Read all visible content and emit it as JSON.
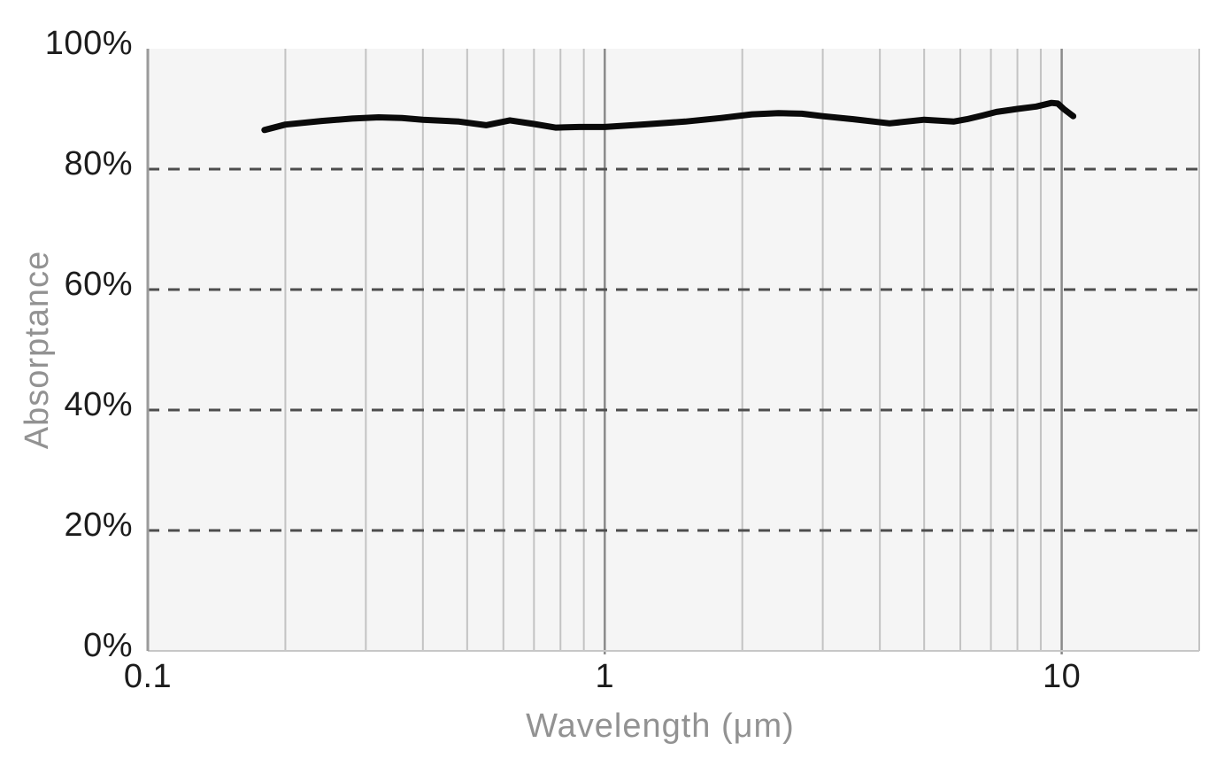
{
  "chart_data": {
    "type": "line",
    "title": "",
    "xlabel": "Wavelength (μm)",
    "ylabel": "Absorptance",
    "x_scale": "log",
    "xlim": [
      0.1,
      20
    ],
    "ylim": [
      0,
      100
    ],
    "grid": "on",
    "legend": "none",
    "x_ticks": [
      {
        "value": 0.1,
        "label": "0.1"
      },
      {
        "value": 1,
        "label": "1"
      },
      {
        "value": 10,
        "label": "10"
      }
    ],
    "y_ticks": [
      {
        "value": 0,
        "label": "0%"
      },
      {
        "value": 20,
        "label": "20%"
      },
      {
        "value": 40,
        "label": "40%"
      },
      {
        "value": 60,
        "label": "60%"
      },
      {
        "value": 80,
        "label": "80%"
      },
      {
        "value": 100,
        "label": "100%"
      }
    ],
    "x_minor_gridlines": [
      0.2,
      0.3,
      0.4,
      0.5,
      0.6,
      0.7,
      0.8,
      0.9,
      2,
      3,
      4,
      5,
      6,
      7,
      8,
      9,
      20
    ],
    "x_major_gridlines": [
      1,
      10
    ],
    "y_dashed_gridlines": [
      20,
      40,
      60,
      80
    ],
    "series": [
      {
        "name": "Absorptance",
        "color": "#0a0a0a",
        "points": [
          [
            0.18,
            86.5
          ],
          [
            0.2,
            87.4
          ],
          [
            0.24,
            88.0
          ],
          [
            0.28,
            88.4
          ],
          [
            0.32,
            88.6
          ],
          [
            0.36,
            88.5
          ],
          [
            0.4,
            88.2
          ],
          [
            0.48,
            87.9
          ],
          [
            0.55,
            87.3
          ],
          [
            0.62,
            88.1
          ],
          [
            0.7,
            87.5
          ],
          [
            0.78,
            86.9
          ],
          [
            0.88,
            87.0
          ],
          [
            1.0,
            87.0
          ],
          [
            1.2,
            87.4
          ],
          [
            1.5,
            87.9
          ],
          [
            1.8,
            88.5
          ],
          [
            2.1,
            89.1
          ],
          [
            2.4,
            89.3
          ],
          [
            2.7,
            89.2
          ],
          [
            3.0,
            88.8
          ],
          [
            3.5,
            88.3
          ],
          [
            4.2,
            87.6
          ],
          [
            5.0,
            88.2
          ],
          [
            5.8,
            87.9
          ],
          [
            6.2,
            88.3
          ],
          [
            6.7,
            88.9
          ],
          [
            7.2,
            89.5
          ],
          [
            8.0,
            90.0
          ],
          [
            8.8,
            90.4
          ],
          [
            9.5,
            91.0
          ],
          [
            9.8,
            90.9
          ],
          [
            10.1,
            90.0
          ],
          [
            10.6,
            88.8
          ]
        ]
      }
    ],
    "colors": {
      "panel_background": "#f5f5f5",
      "page_background": "#ffffff",
      "minor_gridline": "#c3c3c3",
      "major_gridline": "#8a8a8a",
      "left_axis": "#9a9a9a",
      "bottom_axis": "#c7c7c7",
      "dashed_gridline": "#4d4d4d",
      "tick_text": "#1c1c1c",
      "axis_title_text": "#929292",
      "line": "#0a0a0a"
    }
  }
}
